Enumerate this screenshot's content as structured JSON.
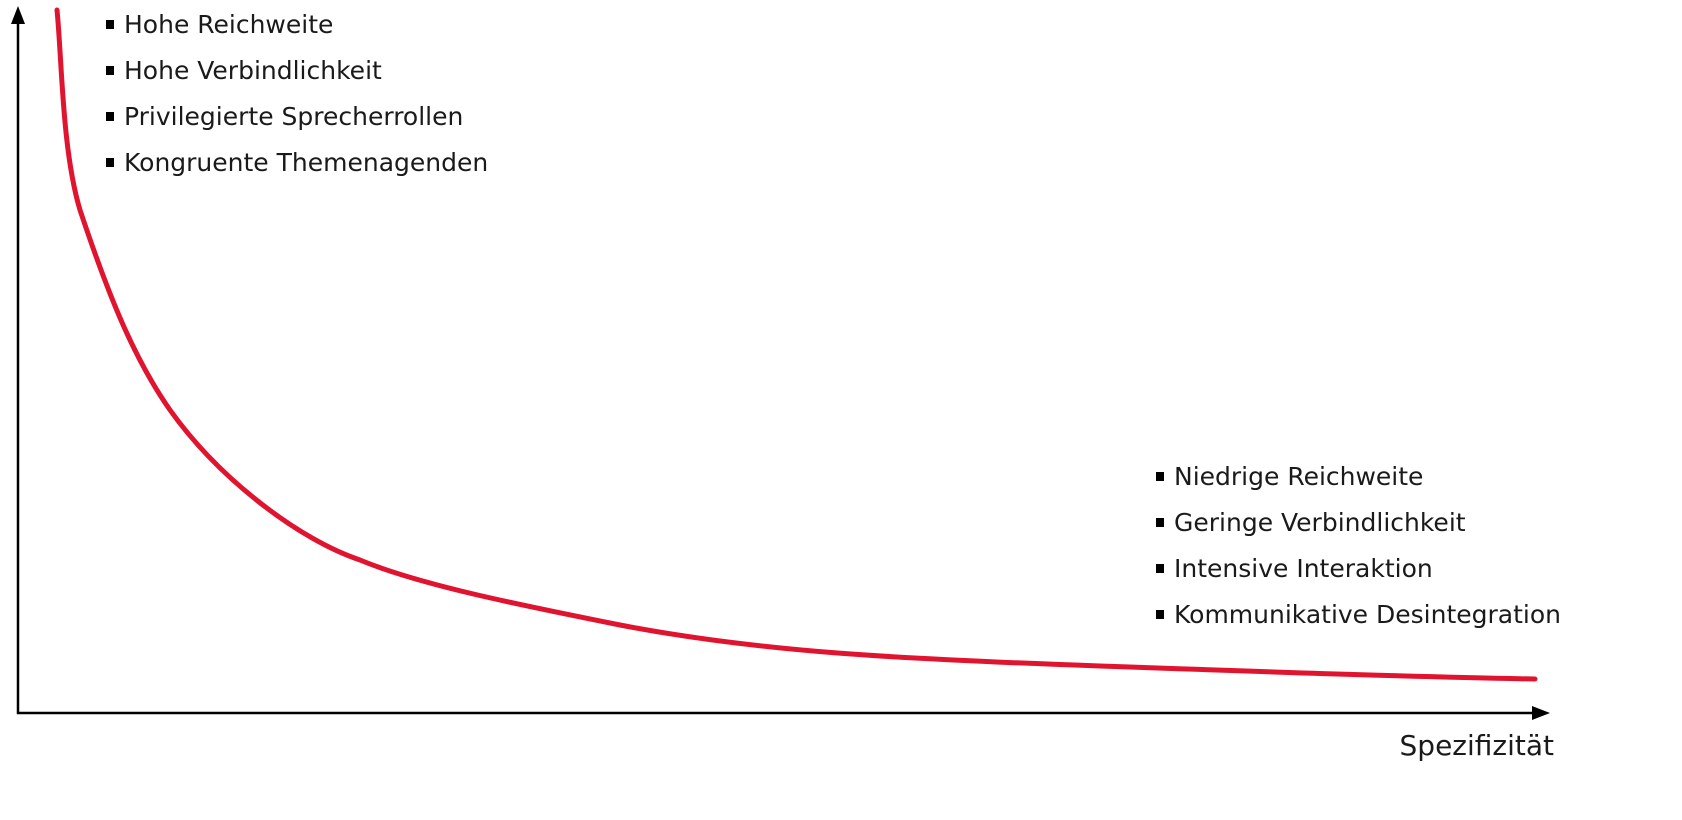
{
  "diagram": {
    "x_axis_label": "Spezifizität",
    "y_axis_label": "",
    "curve_color": "#e0142f",
    "axis_color": "#000000",
    "top_left_list": [
      "Hohe Reichweite",
      "Hohe Verbindlichkeit",
      "Privilegierte Sprecherrollen",
      "Kongruente Themenagenden"
    ],
    "bottom_right_list": [
      "Niedrige Reichweite",
      "Geringe Verbindlichkeit",
      "Intensive Interaktion",
      "Kommunikative Desintegration"
    ]
  }
}
